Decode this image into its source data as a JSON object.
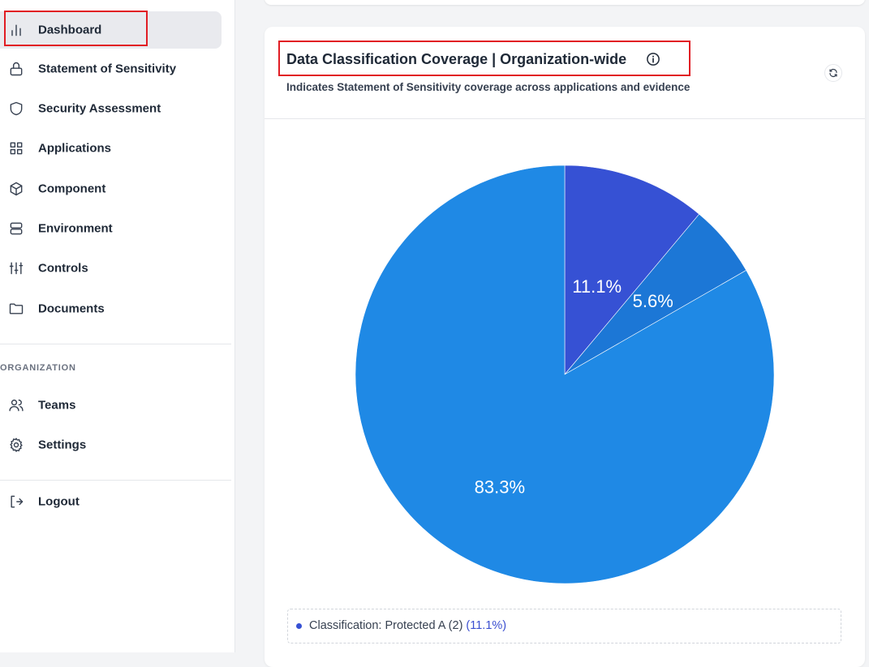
{
  "sidebar": {
    "items": [
      {
        "label": "Dashboard",
        "icon": "bar-chart-icon"
      },
      {
        "label": "Statement of Sensitivity",
        "icon": "lock-icon"
      },
      {
        "label": "Security Assessment",
        "icon": "shield-icon"
      },
      {
        "label": "Applications",
        "icon": "grid-icon"
      },
      {
        "label": "Component",
        "icon": "cube-icon"
      },
      {
        "label": "Environment",
        "icon": "server-icon"
      },
      {
        "label": "Controls",
        "icon": "sliders-icon"
      },
      {
        "label": "Documents",
        "icon": "folder-icon"
      }
    ],
    "section_label": "ORGANIZATION",
    "org_items": [
      {
        "label": "Teams",
        "icon": "users-icon"
      },
      {
        "label": "Settings",
        "icon": "gear-icon"
      }
    ],
    "logout_label": "Logout"
  },
  "card": {
    "title": "Data Classification Coverage | Organization-wide",
    "subtitle": "Indicates Statement of Sensitivity coverage across applications and evidence"
  },
  "chart_data": {
    "type": "pie",
    "slices": [
      {
        "label": "11.1%",
        "value": 11.1,
        "color": "#3651d4"
      },
      {
        "label": "5.6%",
        "value": 5.6,
        "color": "#1c77d6"
      },
      {
        "label": "83.3%",
        "value": 83.3,
        "color": "#1f89e5"
      }
    ]
  },
  "legend": {
    "items": [
      {
        "text": "Classification: Protected A (2)",
        "pct": "(11.1%)",
        "color": "#3651d4"
      }
    ]
  },
  "colors": {
    "accent": "#3651d4",
    "highlight": "#e11d24"
  }
}
